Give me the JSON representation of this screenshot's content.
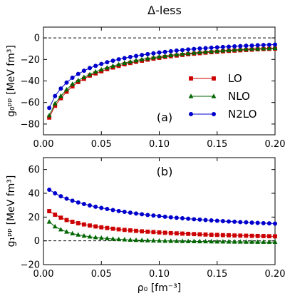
{
  "figure": {
    "title": "Δ-less"
  },
  "chart_data": [
    {
      "id": "a",
      "type": "line",
      "panel_label": "(a)",
      "ylabel": "g₀ᵖᵖ [MeV fm³]",
      "xlim": [
        0.0,
        0.2
      ],
      "ylim": [
        -90,
        10
      ],
      "xticks": [
        0.0,
        0.05,
        0.1,
        0.15,
        0.2
      ],
      "xtick_labels": [
        "0.00",
        "0.05",
        "0.10",
        "0.15",
        "0.20"
      ],
      "yticks": [
        -80,
        -60,
        -40,
        -20,
        0
      ],
      "ytick_labels": [
        "−80",
        "−60",
        "−40",
        "−20",
        "0"
      ],
      "reference_line": {
        "y": 0,
        "style": "dashed"
      },
      "x": [
        0.005,
        0.01,
        0.015,
        0.02,
        0.025,
        0.03,
        0.035,
        0.04,
        0.045,
        0.05,
        0.055,
        0.06,
        0.065,
        0.07,
        0.075,
        0.08,
        0.085,
        0.09,
        0.095,
        0.1,
        0.105,
        0.11,
        0.115,
        0.12,
        0.125,
        0.13,
        0.135,
        0.14,
        0.145,
        0.15,
        0.155,
        0.16,
        0.165,
        0.17,
        0.175,
        0.18,
        0.185,
        0.19,
        0.195,
        0.2
      ],
      "series": [
        {
          "name": "LO",
          "color": "#cc0000",
          "marker": "square",
          "values": [
            -74,
            -63,
            -56,
            -50,
            -45,
            -41,
            -38,
            -35,
            -33,
            -31,
            -29,
            -27.5,
            -26,
            -24.5,
            -23.3,
            -22.2,
            -21.2,
            -20.2,
            -19.3,
            -18.5,
            -17.7,
            -17,
            -16.4,
            -15.8,
            -15.2,
            -14.7,
            -14.2,
            -13.7,
            -13.3,
            -12.9,
            -12.5,
            -12.1,
            -11.8,
            -11.5,
            -11.2,
            -10.9,
            -10.6,
            -10.4,
            -10.2,
            -10
          ]
        },
        {
          "name": "NLO",
          "color": "#006600",
          "marker": "triangle",
          "values": [
            -72,
            -61,
            -54,
            -48,
            -43,
            -39.5,
            -36.5,
            -34,
            -31.5,
            -29.5,
            -27.7,
            -26.1,
            -24.7,
            -23.3,
            -22.1,
            -21,
            -20,
            -19.1,
            -18.3,
            -17.5,
            -16.8,
            -16.1,
            -15.5,
            -14.9,
            -14.4,
            -13.9,
            -13.4,
            -13,
            -12.6,
            -12.2,
            -11.8,
            -11.5,
            -11.2,
            -10.9,
            -10.6,
            -10.3,
            -10.1,
            -9.9,
            -9.7,
            -9.5
          ]
        },
        {
          "name": "N2LO",
          "color": "#0000cc",
          "marker": "circle",
          "values": [
            -65,
            -54,
            -47,
            -41.5,
            -37,
            -33.5,
            -30.5,
            -28,
            -26,
            -24.2,
            -22.6,
            -21.2,
            -19.9,
            -18.8,
            -17.7,
            -16.8,
            -15.9,
            -15.1,
            -14.3,
            -13.6,
            -13,
            -12.4,
            -11.8,
            -11.3,
            -10.8,
            -10.3,
            -9.9,
            -9.5,
            -9.1,
            -8.8,
            -8.5,
            -8.2,
            -7.9,
            -7.6,
            -7.3,
            -7.1,
            -6.8,
            -6.6,
            -6.4,
            -6.2
          ]
        }
      ]
    },
    {
      "id": "b",
      "type": "line",
      "panel_label": "(b)",
      "ylabel": "g₁ᵖᵖ [MeV fm³]",
      "xlabel": "ρ₀ [fm⁻³]",
      "xlim": [
        0.0,
        0.2
      ],
      "ylim": [
        -20,
        70
      ],
      "xticks": [
        0.0,
        0.05,
        0.1,
        0.15,
        0.2
      ],
      "xtick_labels": [
        "0.00",
        "0.05",
        "0.10",
        "0.15",
        "0.20"
      ],
      "yticks": [
        -20,
        0,
        20,
        40,
        60
      ],
      "ytick_labels": [
        "−20",
        "0",
        "20",
        "40",
        "60"
      ],
      "reference_line": {
        "y": 0,
        "style": "dashed"
      },
      "x": [
        0.005,
        0.01,
        0.015,
        0.02,
        0.025,
        0.03,
        0.035,
        0.04,
        0.045,
        0.05,
        0.055,
        0.06,
        0.065,
        0.07,
        0.075,
        0.08,
        0.085,
        0.09,
        0.095,
        0.1,
        0.105,
        0.11,
        0.115,
        0.12,
        0.125,
        0.13,
        0.135,
        0.14,
        0.145,
        0.15,
        0.155,
        0.16,
        0.165,
        0.17,
        0.175,
        0.18,
        0.185,
        0.19,
        0.195,
        0.2
      ],
      "series": [
        {
          "name": "LO",
          "color": "#cc0000",
          "marker": "square",
          "values": [
            25,
            22,
            19.5,
            17.5,
            16,
            14.8,
            13.8,
            12.9,
            12.1,
            11.4,
            10.8,
            10.2,
            9.7,
            9.2,
            8.8,
            8.4,
            8,
            7.7,
            7.4,
            7.1,
            6.8,
            6.5,
            6.3,
            6.1,
            5.9,
            5.7,
            5.5,
            5.3,
            5.1,
            5,
            4.8,
            4.7,
            4.5,
            4.4,
            4.3,
            4.2,
            4.1,
            4,
            3.9,
            3.8
          ]
        },
        {
          "name": "NLO",
          "color": "#006600",
          "marker": "triangle",
          "values": [
            16,
            12,
            9.5,
            7.6,
            6.2,
            5.1,
            4.2,
            3.5,
            2.9,
            2.4,
            2,
            1.6,
            1.3,
            1.05,
            0.8,
            0.6,
            0.45,
            0.3,
            0.15,
            0.05,
            -0.05,
            -0.15,
            -0.25,
            -0.3,
            -0.4,
            -0.45,
            -0.5,
            -0.55,
            -0.6,
            -0.65,
            -0.7,
            -0.75,
            -0.8,
            -0.85,
            -0.9,
            -0.9,
            -0.95,
            -1,
            -1,
            -1.05
          ]
        },
        {
          "name": "N2LO",
          "color": "#0000cc",
          "marker": "circle",
          "values": [
            43,
            40,
            37.5,
            35.5,
            33.8,
            32.3,
            31,
            29.8,
            28.7,
            27.7,
            26.8,
            25.9,
            25.1,
            24.4,
            23.7,
            23,
            22.4,
            21.8,
            21.3,
            20.8,
            20.3,
            19.8,
            19.4,
            19,
            18.6,
            18.2,
            17.9,
            17.5,
            17.2,
            16.9,
            16.6,
            16.3,
            16.1,
            15.8,
            15.6,
            15.3,
            15.1,
            14.9,
            14.7,
            14.5
          ]
        }
      ]
    }
  ]
}
